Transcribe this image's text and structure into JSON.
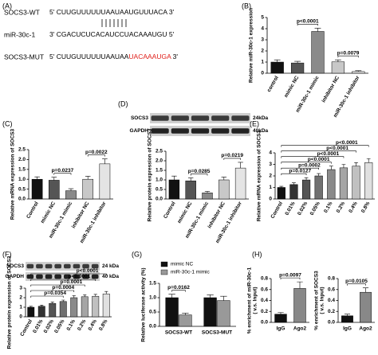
{
  "panel_a": {
    "panel": "(A)",
    "rows": [
      {
        "name": "SOCS3-WT",
        "parts": [
          "5' CUUGUUUUUUAAUAAUGUUUACA 3'"
        ]
      },
      {
        "name": "miR-30c-1",
        "parts": [
          "3' CGACUCUCACAUCC",
          "UACAAAUGU",
          " 5'"
        ]
      },
      {
        "name": "SOCS3-MUT",
        "parts": [
          "5' CUUGUUUUUUAAUAA",
          "UACAAAUGA",
          " 3'"
        ]
      }
    ],
    "highlight_color": "#e0201b"
  },
  "chart_data": [
    {
      "type": "bar",
      "panel": "(B)",
      "ylabel": "Relative miR-30c-1 expression",
      "categories": [
        "control",
        "mimic NC",
        "miR-30c-1 mimic",
        "inhibitor NC",
        "miR-30c-1 inhibitor"
      ],
      "values": [
        1.0,
        0.92,
        3.75,
        1.02,
        0.15
      ],
      "errors": [
        0.2,
        0.15,
        0.3,
        0.18,
        0.08
      ],
      "colors": [
        "#111111",
        "#555555",
        "#8a8a8a",
        "#c8c8c8",
        "#e4e4e4"
      ],
      "ylim": [
        0,
        5
      ],
      "yticks": [
        0,
        1,
        2,
        3,
        4,
        5
      ],
      "annotations": [
        "p<0.0001",
        "p=0.0079"
      ]
    },
    {
      "type": "bar",
      "panel": "(C)",
      "ylabel": "Relative mRNA expression of SOCS3",
      "categories": [
        "Control",
        "mimic NC",
        "miR-30c-1 mimic",
        "inhibitor NC",
        "miR-30c-1 inhibitor"
      ],
      "values": [
        1.0,
        0.95,
        0.42,
        1.0,
        1.78
      ],
      "errors": [
        0.12,
        0.15,
        0.1,
        0.15,
        0.25
      ],
      "colors": [
        "#111111",
        "#555555",
        "#8a8a8a",
        "#c8c8c8",
        "#e4e4e4"
      ],
      "ylim": [
        0,
        2.5
      ],
      "yticks": [
        {
          "value": 0,
          "label": "0.0"
        },
        0.5,
        {
          "value": 1,
          "label": "1.0"
        },
        1.5,
        {
          "value": 2,
          "label": "2.0"
        },
        2.5
      ],
      "annotations": [
        "p=0.0237",
        "p=0.0022"
      ]
    },
    {
      "type": "bar",
      "panel": "(D)",
      "ylabel": "Relative protein expression of SOCS3",
      "blot": {
        "bands": [
          "SOCS3",
          "GAPDH"
        ],
        "sizes": [
          "24kDa",
          "40kDa"
        ]
      },
      "categories": [
        "Control",
        "mimic NC",
        "miR-30c-1 mimic",
        "inhibitor NC",
        "miR-30c-1 inhibitor"
      ],
      "values": [
        1.0,
        0.95,
        0.32,
        1.0,
        1.62
      ],
      "errors": [
        0.2,
        0.15,
        0.08,
        0.15,
        0.3
      ],
      "colors": [
        "#111111",
        "#555555",
        "#8a8a8a",
        "#c8c8c8",
        "#e4e4e4"
      ],
      "ylim": [
        0,
        2.5
      ],
      "yticks": [
        {
          "value": 0,
          "label": "0.0"
        },
        0.5,
        {
          "value": 1,
          "label": "1.0"
        },
        1.5,
        {
          "value": 2,
          "label": "2.0"
        },
        2.5
      ],
      "annotations": [
        "p=0.0285",
        "p=0.0219"
      ]
    },
    {
      "type": "bar",
      "panel": "(E)",
      "ylabel": "Relative mRNA expression of SOCS3",
      "categories": [
        "Control",
        "0.01%",
        "0.02%",
        "0.05%",
        "0.1%",
        "0.2%",
        "0.4%",
        "0.8%"
      ],
      "values": [
        1.0,
        1.25,
        1.65,
        2.0,
        2.55,
        2.7,
        2.85,
        3.15
      ],
      "errors": [
        0.1,
        0.15,
        0.2,
        0.2,
        0.3,
        0.3,
        0.3,
        0.35
      ],
      "colors": [
        "#111111",
        "#333333",
        "#555555",
        "#707070",
        "#8a8a8a",
        "#a5a5a5",
        "#c0c0c0",
        "#e0e0e0"
      ],
      "ylim": [
        0,
        4
      ],
      "yticks": [
        0,
        1,
        2,
        3,
        4
      ],
      "annotations": [
        "p=0.0127",
        "p=0.0002",
        "p<0.0001",
        "p<0.0001",
        "p<0.0001",
        "p<0.0001"
      ]
    },
    {
      "type": "bar",
      "panel": "(F)",
      "ylabel": "Relative protein expression of SOCS3",
      "blot": {
        "bands": [
          "SOCS3",
          "GAPDH"
        ],
        "sizes": [
          "24 kDa",
          "40 kDa"
        ]
      },
      "categories": [
        "Control",
        "0.01%",
        "0.02%",
        "0.05%",
        "0.1%",
        "0.2%",
        "0.4%",
        "0.8%"
      ],
      "values": [
        1.0,
        1.1,
        1.4,
        1.6,
        2.0,
        2.1,
        2.15,
        2.4
      ],
      "errors": [
        0.1,
        0.12,
        0.15,
        0.15,
        0.2,
        0.2,
        0.2,
        0.25
      ],
      "colors": [
        "#111111",
        "#333333",
        "#555555",
        "#707070",
        "#8a8a8a",
        "#a5a5a5",
        "#c0c0c0",
        "#e0e0e0"
      ],
      "ylim": [
        0,
        3
      ],
      "yticks": [
        0,
        1,
        2,
        3
      ],
      "annotations": [
        "p=0.0354",
        "p=0.0004",
        "p=0.0001",
        "p<0.0001",
        "p<0.0001"
      ]
    },
    {
      "type": "grouped_bar",
      "panel": "(G)",
      "ylabel": "Relative luciferase activity (%)",
      "categories": [
        "SOCS3-WT",
        "SOCS3-MUT"
      ],
      "series": [
        {
          "name": "mimic NC",
          "color": "#111111",
          "values": [
            1.0,
            1.0
          ],
          "errors": [
            0.12,
            0.1
          ]
        },
        {
          "name": "miR-30c-1 mimic",
          "color": "#999999",
          "values": [
            0.4,
            0.9
          ],
          "errors": [
            0.06,
            0.15
          ]
        }
      ],
      "ylim": [
        0,
        1.5
      ],
      "yticks": [
        {
          "value": 0,
          "label": "0.0"
        },
        0.5,
        {
          "value": 1,
          "label": "1.0"
        },
        1.5
      ],
      "legend": "top-left",
      "annotations": [
        "p=0.0162"
      ]
    },
    {
      "type": "bar",
      "panel": "(H)",
      "ylabel": [
        "% enrichment of miR-30c-1",
        "( v.s. Input)"
      ],
      "categories": [
        "IgG",
        "Ago2"
      ],
      "values": [
        0.15,
        0.62
      ],
      "errors": [
        0.03,
        0.12
      ],
      "colors": [
        "#111111",
        "#888888"
      ],
      "ylim": [
        0,
        0.8
      ],
      "yticks": [
        {
          "value": 0,
          "label": "0.0"
        },
        0.2,
        0.4,
        0.6,
        0.8
      ],
      "annotations": [
        "p=0.0097"
      ]
    },
    {
      "type": "bar",
      "ylabel": [
        "% enrichment of SOCS3",
        "( v.s. Input)"
      ],
      "categories": [
        "IgG",
        "Ago2"
      ],
      "values": [
        0.12,
        0.55
      ],
      "errors": [
        0.03,
        0.08
      ],
      "colors": [
        "#111111",
        "#888888"
      ],
      "ylim": [
        0,
        0.8
      ],
      "yticks": [
        {
          "value": 0,
          "label": "0.0"
        },
        0.2,
        0.4,
        0.6,
        0.8
      ],
      "annotations": [
        "p=0.0105"
      ]
    }
  ]
}
